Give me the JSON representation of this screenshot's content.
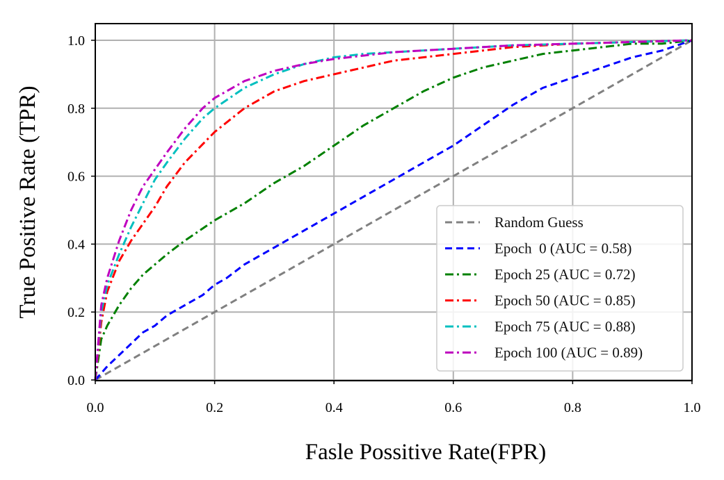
{
  "chart_data": {
    "type": "line",
    "title": "",
    "xlabel": "Fasle Possitive Rate(FPR)",
    "ylabel": "True Positive Rate (TPR)",
    "xlim": [
      0.0,
      1.0
    ],
    "ylim": [
      0.0,
      1.0
    ],
    "xticks": [
      "0.0",
      "0.2",
      "0.4",
      "0.6",
      "0.8",
      "1.0"
    ],
    "yticks": [
      "0.0",
      "0.2",
      "0.4",
      "0.6",
      "0.8",
      "1.0"
    ],
    "grid": true,
    "legend_position": "lower-right",
    "series": [
      {
        "name": "Random Guess",
        "color": "#808080",
        "style": "dashed",
        "x": [
          0.0,
          1.0
        ],
        "y": [
          0.0,
          1.0
        ]
      },
      {
        "name": "Epoch  0 (AUC = 0.58)",
        "color": "#0000ff",
        "style": "dashed",
        "x": [
          0.0,
          0.02,
          0.05,
          0.08,
          0.1,
          0.12,
          0.15,
          0.18,
          0.2,
          0.22,
          0.25,
          0.3,
          0.35,
          0.4,
          0.45,
          0.5,
          0.55,
          0.6,
          0.65,
          0.7,
          0.75,
          0.8,
          0.85,
          0.9,
          0.95,
          1.0
        ],
        "y": [
          0.0,
          0.04,
          0.09,
          0.14,
          0.16,
          0.19,
          0.22,
          0.25,
          0.28,
          0.3,
          0.34,
          0.39,
          0.44,
          0.49,
          0.54,
          0.59,
          0.64,
          0.69,
          0.75,
          0.81,
          0.86,
          0.89,
          0.92,
          0.95,
          0.97,
          1.0
        ]
      },
      {
        "name": "Epoch 25 (AUC = 0.72)",
        "color": "#008000",
        "style": "dashdot",
        "x": [
          0.0,
          0.01,
          0.02,
          0.04,
          0.06,
          0.08,
          0.1,
          0.12,
          0.15,
          0.2,
          0.25,
          0.3,
          0.35,
          0.4,
          0.45,
          0.5,
          0.55,
          0.6,
          0.65,
          0.7,
          0.75,
          0.8,
          0.85,
          0.9,
          0.95,
          1.0
        ],
        "y": [
          0.0,
          0.12,
          0.16,
          0.22,
          0.27,
          0.31,
          0.34,
          0.37,
          0.41,
          0.47,
          0.52,
          0.58,
          0.63,
          0.69,
          0.75,
          0.8,
          0.85,
          0.89,
          0.92,
          0.94,
          0.96,
          0.97,
          0.98,
          0.99,
          0.99,
          1.0
        ]
      },
      {
        "name": "Epoch 50 (AUC = 0.85)",
        "color": "#ff0000",
        "style": "dashdot",
        "x": [
          0.0,
          0.01,
          0.02,
          0.04,
          0.06,
          0.08,
          0.1,
          0.12,
          0.15,
          0.2,
          0.25,
          0.3,
          0.35,
          0.4,
          0.45,
          0.5,
          0.55,
          0.6,
          0.65,
          0.7,
          0.8,
          0.9,
          1.0
        ],
        "y": [
          0.0,
          0.17,
          0.26,
          0.35,
          0.41,
          0.46,
          0.51,
          0.57,
          0.64,
          0.73,
          0.8,
          0.85,
          0.88,
          0.9,
          0.92,
          0.94,
          0.95,
          0.96,
          0.97,
          0.98,
          0.99,
          0.995,
          1.0
        ]
      },
      {
        "name": "Epoch 75 (AUC = 0.88)",
        "color": "#00bfbf",
        "style": "dashdot",
        "x": [
          0.0,
          0.01,
          0.02,
          0.04,
          0.06,
          0.08,
          0.1,
          0.12,
          0.15,
          0.18,
          0.2,
          0.25,
          0.3,
          0.35,
          0.4,
          0.45,
          0.5,
          0.6,
          0.7,
          0.8,
          0.9,
          1.0
        ],
        "y": [
          0.0,
          0.2,
          0.28,
          0.37,
          0.45,
          0.52,
          0.59,
          0.64,
          0.71,
          0.77,
          0.8,
          0.86,
          0.9,
          0.93,
          0.95,
          0.96,
          0.965,
          0.975,
          0.985,
          0.99,
          0.995,
          1.0
        ]
      },
      {
        "name": "Epoch 100 (AUC = 0.89)",
        "color": "#bf00bf",
        "style": "dashdot",
        "x": [
          0.0,
          0.01,
          0.02,
          0.04,
          0.06,
          0.08,
          0.1,
          0.12,
          0.15,
          0.18,
          0.2,
          0.25,
          0.3,
          0.35,
          0.4,
          0.45,
          0.5,
          0.6,
          0.7,
          0.8,
          0.9,
          1.0
        ],
        "y": [
          0.0,
          0.22,
          0.3,
          0.41,
          0.5,
          0.57,
          0.62,
          0.67,
          0.74,
          0.8,
          0.83,
          0.88,
          0.91,
          0.93,
          0.945,
          0.955,
          0.965,
          0.975,
          0.985,
          0.99,
          0.995,
          1.0
        ]
      }
    ]
  }
}
